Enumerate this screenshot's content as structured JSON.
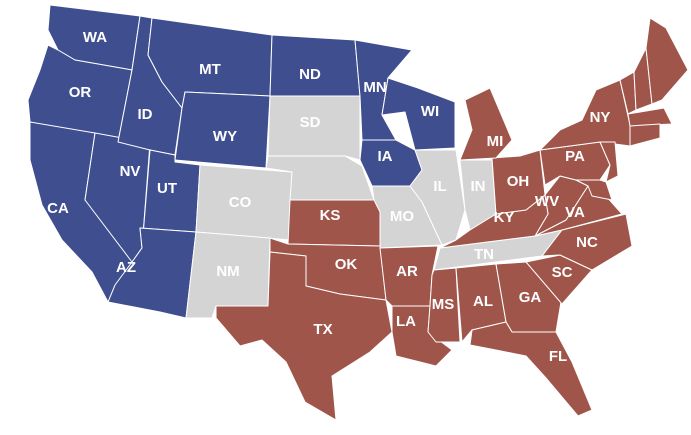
{
  "colors": {
    "blue": "#3e4e8f",
    "red": "#a0554a",
    "gray": "#d4d4d4"
  },
  "states": [
    {
      "code": "WA",
      "group": "blue",
      "label": "WA"
    },
    {
      "code": "OR",
      "group": "blue",
      "label": "OR"
    },
    {
      "code": "CA",
      "group": "blue",
      "label": "CA"
    },
    {
      "code": "NV",
      "group": "blue",
      "label": "NV"
    },
    {
      "code": "ID",
      "group": "blue",
      "label": "ID"
    },
    {
      "code": "MT",
      "group": "blue",
      "label": "MT"
    },
    {
      "code": "WY",
      "group": "blue",
      "label": "WY"
    },
    {
      "code": "UT",
      "group": "blue",
      "label": "UT"
    },
    {
      "code": "AZ",
      "group": "blue",
      "label": "AZ"
    },
    {
      "code": "ND",
      "group": "blue",
      "label": "ND"
    },
    {
      "code": "MN",
      "group": "blue",
      "label": "MN"
    },
    {
      "code": "WI",
      "group": "blue",
      "label": "WI"
    },
    {
      "code": "IA",
      "group": "blue",
      "label": "IA"
    },
    {
      "code": "CO",
      "group": "gray",
      "label": "CO"
    },
    {
      "code": "NM",
      "group": "gray",
      "label": "NM"
    },
    {
      "code": "SD",
      "group": "gray",
      "label": "SD"
    },
    {
      "code": "NE",
      "group": "gray",
      "label": ""
    },
    {
      "code": "MO",
      "group": "gray",
      "label": "MO"
    },
    {
      "code": "IL",
      "group": "gray",
      "label": "IL"
    },
    {
      "code": "IN",
      "group": "gray",
      "label": "IN"
    },
    {
      "code": "TN",
      "group": "gray",
      "label": "TN"
    },
    {
      "code": "KS",
      "group": "red",
      "label": "KS"
    },
    {
      "code": "OK",
      "group": "red",
      "label": "OK"
    },
    {
      "code": "TX",
      "group": "red",
      "label": "TX"
    },
    {
      "code": "AR",
      "group": "red",
      "label": "AR"
    },
    {
      "code": "LA",
      "group": "red",
      "label": "LA"
    },
    {
      "code": "MS",
      "group": "red",
      "label": "MS"
    },
    {
      "code": "AL",
      "group": "red",
      "label": "AL"
    },
    {
      "code": "GA",
      "group": "red",
      "label": "GA"
    },
    {
      "code": "FL",
      "group": "red",
      "label": "FL"
    },
    {
      "code": "SC",
      "group": "red",
      "label": "SC"
    },
    {
      "code": "NC",
      "group": "red",
      "label": "NC"
    },
    {
      "code": "VA",
      "group": "red",
      "label": "VA"
    },
    {
      "code": "WV",
      "group": "red",
      "label": "WV"
    },
    {
      "code": "KY",
      "group": "red",
      "label": "KY"
    },
    {
      "code": "OH",
      "group": "red",
      "label": "OH"
    },
    {
      "code": "MI",
      "group": "red",
      "label": "MI"
    },
    {
      "code": "PA",
      "group": "red",
      "label": "PA"
    },
    {
      "code": "NY",
      "group": "red",
      "label": "NY"
    },
    {
      "code": "NJ",
      "group": "red",
      "label": ""
    },
    {
      "code": "MD",
      "group": "red",
      "label": ""
    },
    {
      "code": "VT",
      "group": "red",
      "label": ""
    },
    {
      "code": "NH",
      "group": "red",
      "label": ""
    },
    {
      "code": "ME",
      "group": "red",
      "label": ""
    },
    {
      "code": "MA",
      "group": "red",
      "label": ""
    },
    {
      "code": "CT",
      "group": "red",
      "label": ""
    }
  ]
}
